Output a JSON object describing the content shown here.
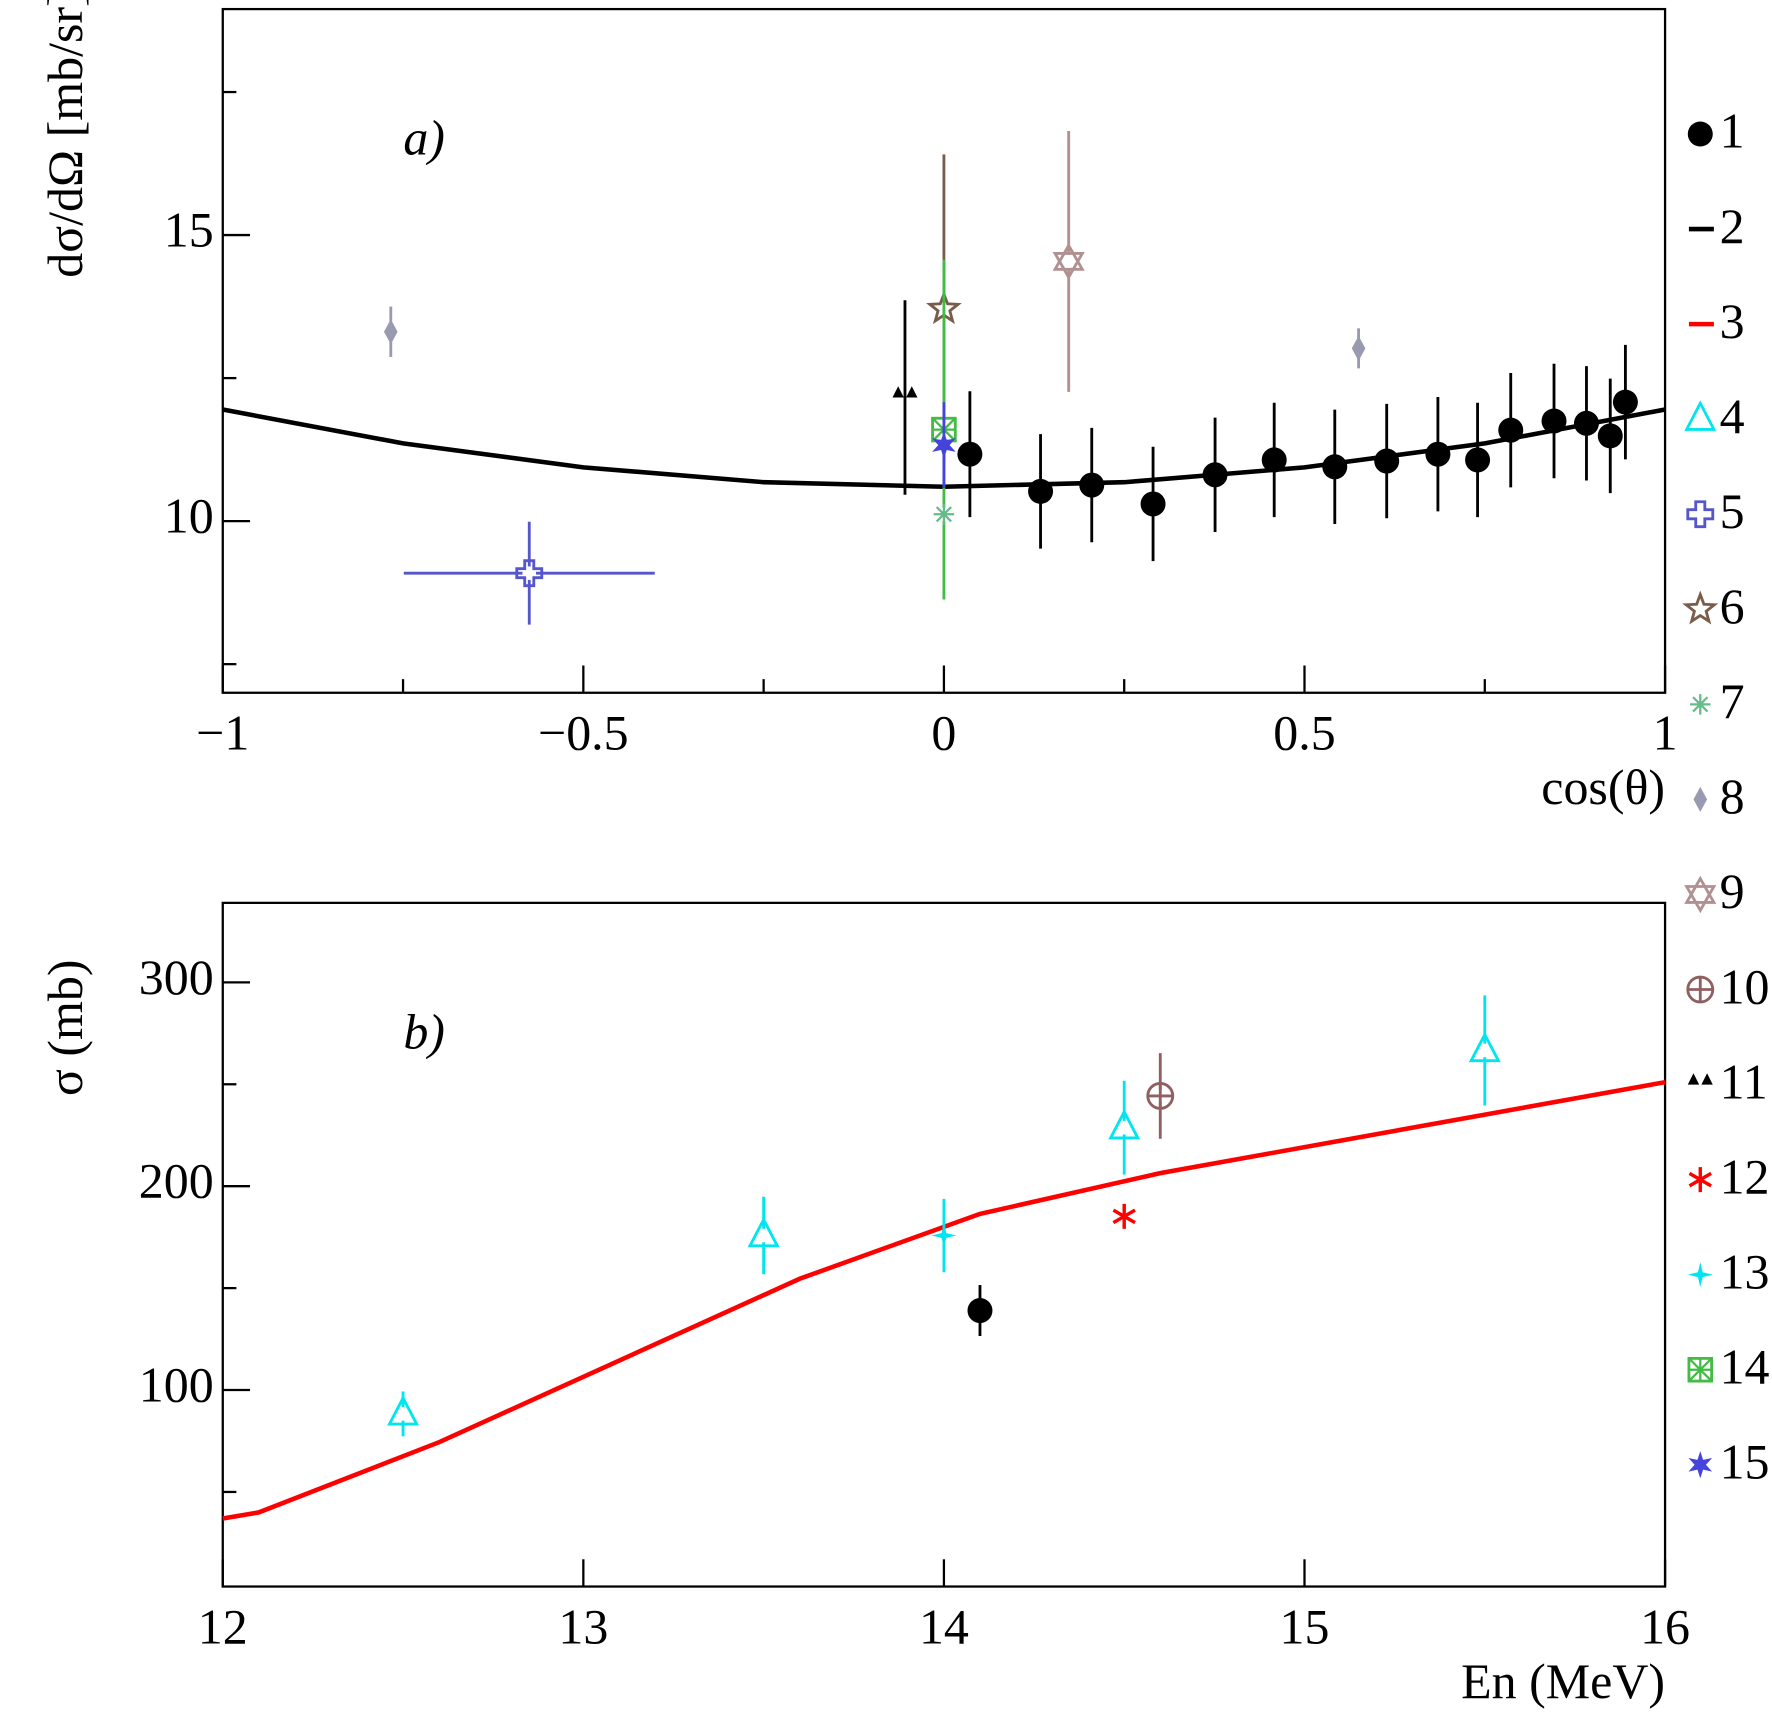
{
  "charts": [
    {
      "chart_data": {
        "type": "scatter",
        "annotation": "a)",
        "xlabel": "cos(θ)",
        "ylabel": "dσ/dΩ [mb/sr]",
        "xlim": [
          -1,
          1
        ],
        "ylim": [
          7,
          18.95
        ],
        "xticks": [
          {
            "value": -1,
            "label": "−1"
          },
          {
            "value": -0.5,
            "label": "−0.5"
          },
          0,
          0.5,
          1
        ],
        "xminorticks": [
          -0.75,
          -0.25,
          0.25,
          0.75
        ],
        "yticks": [
          10,
          15
        ],
        "yminorticks": [
          7.5,
          12.5,
          17.5
        ],
        "series": [
          {
            "name": "1",
            "marker": "circle",
            "color": "#000000",
            "x": [
              0.036,
              0.134,
              0.205,
              0.29,
              0.376,
              0.458,
              0.542,
              0.614,
              0.685,
              0.74,
              0.786,
              0.846,
              0.891,
              0.924,
              0.945
            ],
            "values": [
              11.17,
              10.52,
              10.63,
              10.3,
              10.81,
              11.07,
              10.95,
              11.05,
              11.17,
              11.07,
              11.59,
              11.75,
              11.71,
              11.49,
              12.08
            ],
            "errors": [
              1.1,
              1.0,
              1.0,
              1.0,
              1.0,
              1.0,
              1.0,
              1.0,
              1.0,
              1.0,
              1.0,
              1.0,
              1.0,
              1.0,
              1.0
            ]
          },
          {
            "name": "2",
            "marker": "line",
            "color": "#000000",
            "x": [
              -1,
              -0.75,
              -0.5,
              -0.25,
              0,
              0.25,
              0.5,
              0.75,
              1
            ],
            "values": [
              11.95,
              11.36,
              10.94,
              10.68,
              10.6,
              10.68,
              10.94,
              11.36,
              11.95
            ]
          },
          {
            "name": "5",
            "marker": "cross",
            "color": "#5555cc",
            "x": [
              -0.575
            ],
            "values": [
              9.09
            ],
            "errors": [
              0.9
            ],
            "xerrors": [
              0.174
            ]
          },
          {
            "name": "6",
            "marker": "star",
            "color": "#7a5c4a",
            "x": [
              0
            ],
            "values": [
              13.71
            ],
            "errors": [
              2.7
            ]
          },
          {
            "name": "14",
            "marker": "boxcross",
            "color": "#44bb44",
            "x": [
              0
            ],
            "values": [
              11.6
            ],
            "errors": [
              2.97
            ]
          },
          {
            "name": "7",
            "marker": "asterisk",
            "color": "#66bb88",
            "x": [
              0
            ],
            "values": [
              10.12
            ]
          },
          {
            "name": "15",
            "marker": "star6",
            "color": "#4444dd",
            "x": [
              0
            ],
            "values": [
              11.33
            ],
            "errors": [
              0.75
            ]
          },
          {
            "name": "8",
            "marker": "diamond",
            "color": "#9999b0",
            "x": [
              -0.767,
              0.575
            ],
            "values": [
              13.31,
              13.02
            ],
            "errors": [
              0.44,
              0.35
            ]
          },
          {
            "name": "9",
            "marker": "hexagram",
            "color": "#b09090",
            "x": [
              0.173
            ],
            "values": [
              14.54
            ],
            "errors": [
              2.28
            ]
          },
          {
            "name": "11",
            "marker": "tri2",
            "color": "#000000",
            "x": [
              -0.054
            ],
            "values": [
              12.16
            ],
            "errors": [
              1.7
            ]
          }
        ]
      }
    },
    {
      "chart_data": {
        "type": "scatter",
        "annotation": "b)",
        "xlabel": "En (MeV)",
        "ylabel": "σ (mb)",
        "xlim": [
          12,
          16
        ],
        "ylim": [
          3.6,
          339
        ],
        "xticks": [
          12,
          13,
          14,
          15,
          16
        ],
        "xminorticks": [],
        "yticks": [
          100,
          200,
          300
        ],
        "yminorticks": [
          50,
          150,
          250
        ],
        "series": [
          {
            "name": "3",
            "marker": "line",
            "color": "#ff0000",
            "x": [
              12,
              12.1,
              12.6,
              13.6,
              14.1,
              14.6,
              16
            ],
            "values": [
              37,
              40,
              74.4,
              154.6,
              186.4,
              206.4,
              251
            ]
          },
          {
            "name": "4",
            "marker": "triangle",
            "color": "#00e5ee",
            "x": [
              12.5,
              13.5,
              14.5,
              15.5
            ],
            "values": [
              88.3,
              175.8,
              228.7,
              266.6
            ],
            "errors": [
              11,
              19,
              23,
              27
            ]
          },
          {
            "name": "10",
            "marker": "circleplus",
            "color": "#906060",
            "x": [
              14.6
            ],
            "values": [
              244.3
            ],
            "errors": [
              21
            ]
          },
          {
            "name": "12",
            "marker": "asterisk8",
            "color": "#ff0000",
            "x": [
              14.5
            ],
            "values": [
              185.2
            ]
          },
          {
            "name": "13",
            "marker": "star4",
            "color": "#00e5ee",
            "x": [
              14
            ],
            "values": [
              175.8
            ],
            "errors": [
              18
            ]
          },
          {
            "name": "1",
            "marker": "circle",
            "color": "#000000",
            "x": [
              14.1
            ],
            "values": [
              139
            ],
            "errors": [
              12.5
            ]
          }
        ]
      }
    }
  ],
  "legend": {
    "entries": [
      {
        "label": "1",
        "marker": "circle",
        "color": "#000000"
      },
      {
        "label": "2",
        "marker": "line",
        "color": "#000000"
      },
      {
        "label": "3",
        "marker": "line",
        "color": "#ff0000"
      },
      {
        "label": "4",
        "marker": "triangle",
        "color": "#00e5ee"
      },
      {
        "label": "5",
        "marker": "cross",
        "color": "#5555cc"
      },
      {
        "label": "6",
        "marker": "star",
        "color": "#7a5c4a"
      },
      {
        "label": "7",
        "marker": "asterisk",
        "color": "#66bb88"
      },
      {
        "label": "8",
        "marker": "diamond",
        "color": "#9999b0"
      },
      {
        "label": "9",
        "marker": "hexagram",
        "color": "#b09090"
      },
      {
        "label": "10",
        "marker": "circleplus",
        "color": "#906060"
      },
      {
        "label": "11",
        "marker": "tri2",
        "color": "#000000"
      },
      {
        "label": "12",
        "marker": "asterisk8",
        "color": "#ff0000"
      },
      {
        "label": "13",
        "marker": "star4",
        "color": "#00e5ee"
      },
      {
        "label": "14",
        "marker": "boxcross",
        "color": "#44bb44"
      },
      {
        "label": "15",
        "marker": "star6",
        "color": "#4444dd"
      }
    ]
  }
}
